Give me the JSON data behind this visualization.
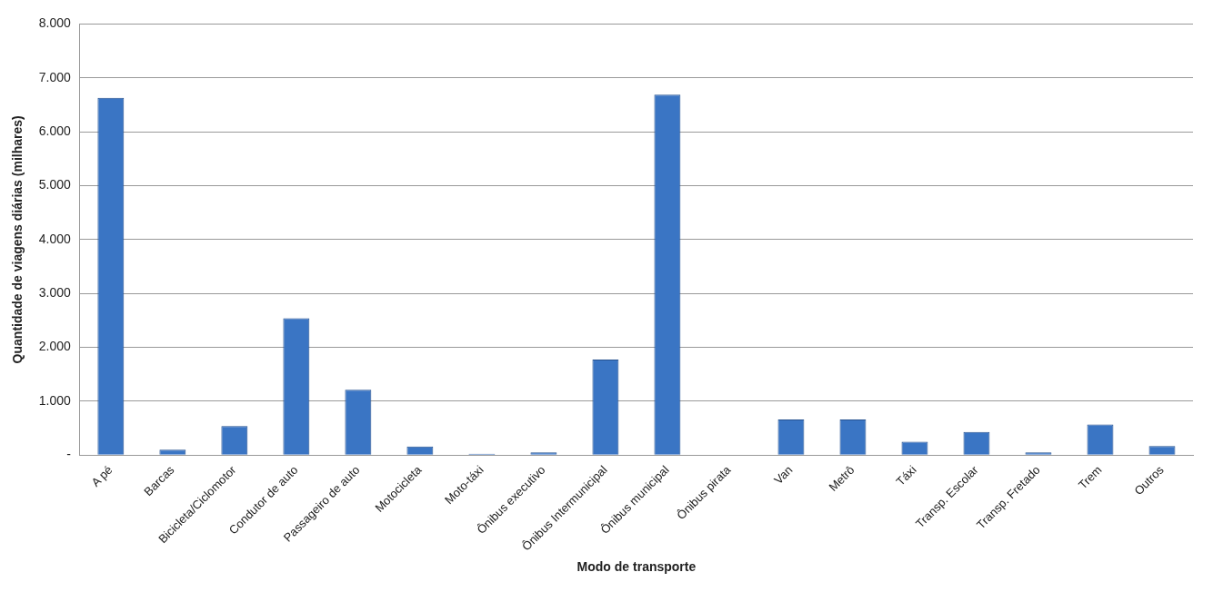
{
  "chart_data": {
    "type": "bar",
    "xlabel": "Modo de transporte",
    "ylabel": "Quantidade de viagens diárias (milhares)",
    "categories": [
      "A pé",
      "Barcas",
      "Bicicleta/Ciclomotor",
      "Condutor de auto",
      "Passageiro de auto",
      "Motocicleta",
      "Moto-táxi",
      "Ônibus executivo",
      "Ônibus Intermunicipal",
      "Ônibus municipal",
      "Ônibus pirata",
      "Van",
      "Metrô",
      "Táxi",
      "Transp. Escolar",
      "Transp. Fretado",
      "Trem",
      "Outros"
    ],
    "values": [
      6630,
      100,
      540,
      2540,
      1215,
      160,
      25,
      50,
      1775,
      6690,
      10,
      660,
      660,
      250,
      430,
      50,
      570,
      170
    ],
    "color": "#3a75c4",
    "ylim": [
      0,
      8000
    ],
    "yticks": [
      {
        "value": 0,
        "label": "-"
      },
      {
        "value": 1000,
        "label": "1.000"
      },
      {
        "value": 2000,
        "label": "2.000"
      },
      {
        "value": 3000,
        "label": "3.000"
      },
      {
        "value": 4000,
        "label": "4.000"
      },
      {
        "value": 5000,
        "label": "5.000"
      },
      {
        "value": 6000,
        "label": "6.000"
      },
      {
        "value": 7000,
        "label": "7.000"
      },
      {
        "value": 8000,
        "label": "8.000"
      }
    ],
    "grid": "y",
    "legend": false
  }
}
